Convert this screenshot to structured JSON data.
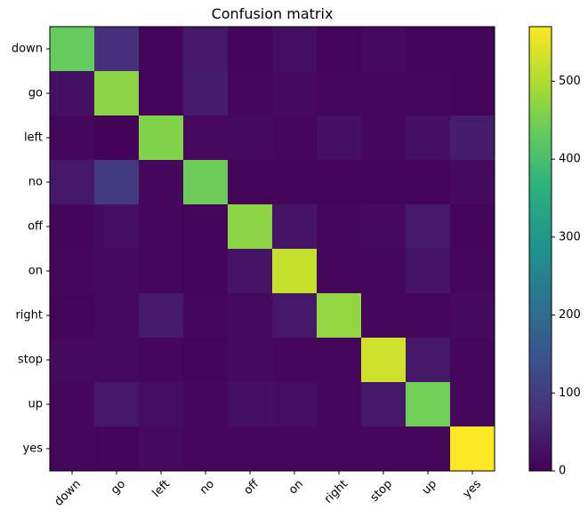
{
  "chart_data": {
    "type": "heatmap",
    "title": "Confusion matrix",
    "xlabel": "",
    "ylabel": "",
    "x_categories": [
      "down",
      "go",
      "left",
      "no",
      "off",
      "on",
      "right",
      "stop",
      "up",
      "yes"
    ],
    "y_categories": [
      "down",
      "go",
      "left",
      "no",
      "off",
      "on",
      "right",
      "stop",
      "up",
      "yes"
    ],
    "values": [
      [
        435,
        75,
        5,
        35,
        8,
        25,
        5,
        15,
        5,
        8
      ],
      [
        25,
        470,
        5,
        45,
        10,
        15,
        10,
        10,
        10,
        5
      ],
      [
        10,
        3,
        460,
        15,
        15,
        10,
        25,
        10,
        25,
        45
      ],
      [
        35,
        95,
        10,
        440,
        5,
        8,
        5,
        5,
        5,
        15
      ],
      [
        8,
        20,
        10,
        5,
        470,
        30,
        10,
        15,
        40,
        5
      ],
      [
        10,
        15,
        10,
        5,
        30,
        520,
        10,
        10,
        30,
        10
      ],
      [
        5,
        15,
        40,
        10,
        15,
        35,
        475,
        10,
        10,
        15
      ],
      [
        15,
        15,
        10,
        5,
        15,
        10,
        10,
        530,
        35,
        10
      ],
      [
        10,
        35,
        20,
        10,
        25,
        20,
        10,
        35,
        445,
        10
      ],
      [
        10,
        5,
        15,
        10,
        10,
        10,
        10,
        10,
        10,
        570
      ]
    ],
    "colormap": "viridis",
    "colorbar": {
      "min": 0,
      "max": 570,
      "ticks": [
        0,
        100,
        200,
        300,
        400,
        500
      ]
    },
    "grid": false
  }
}
